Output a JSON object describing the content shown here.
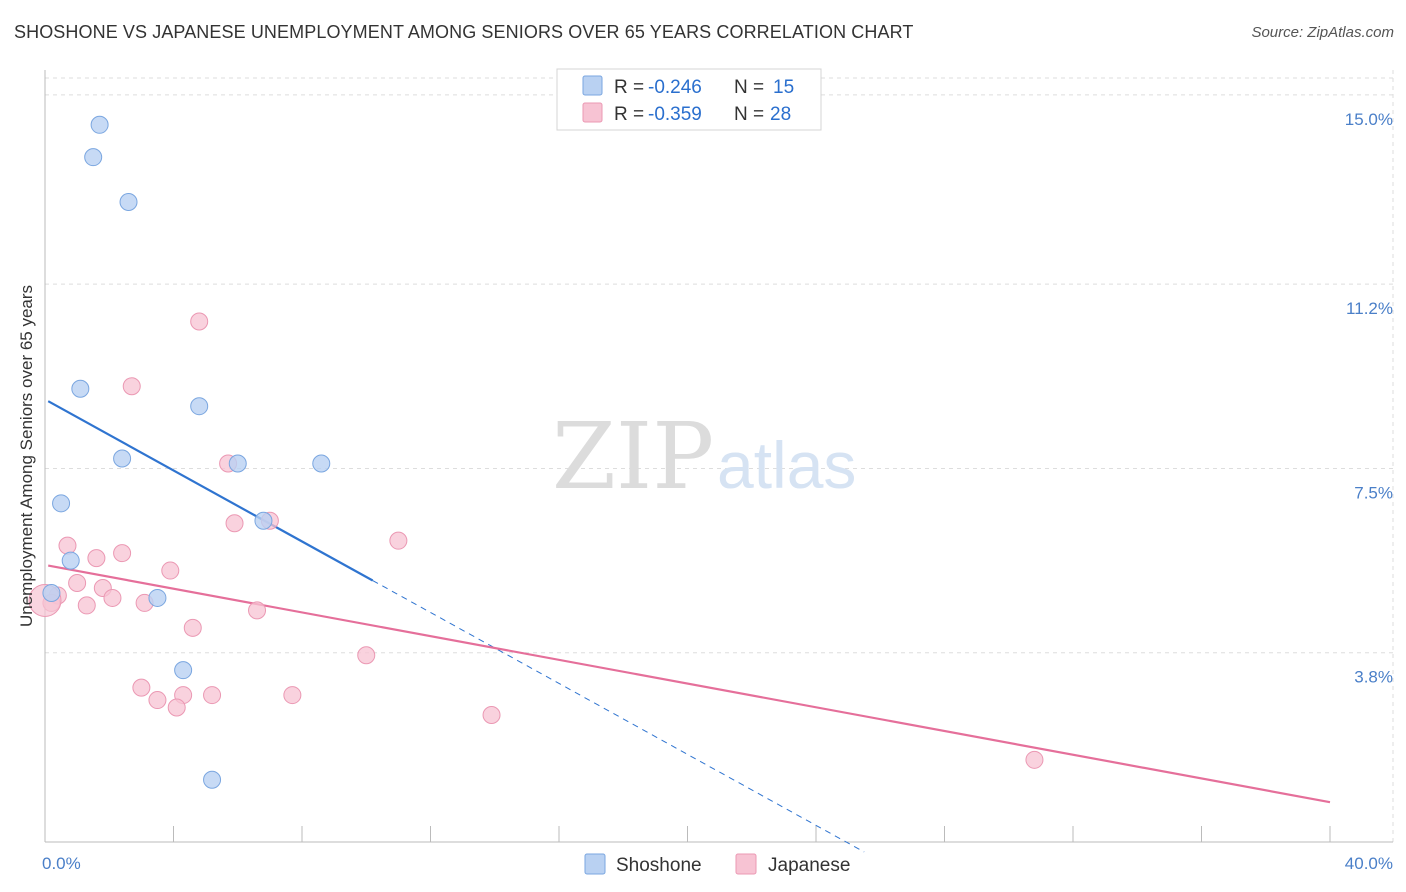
{
  "title": "SHOSHONE VS JAPANESE UNEMPLOYMENT AMONG SENIORS OVER 65 YEARS CORRELATION CHART",
  "source": "Source: ZipAtlas.com",
  "watermark": {
    "zip": "ZIP",
    "atlas": "atlas"
  },
  "colors": {
    "shoshone_fill": "#b9d1f2",
    "shoshone_stroke": "#7aa6e0",
    "shoshone_line": "#2f74d0",
    "japanese_fill": "#f7c3d3",
    "japanese_stroke": "#eb98b3",
    "japanese_line": "#e56f9a",
    "tick_label": "#4a7fc8",
    "grid": "#dddddd"
  },
  "legend": {
    "rows": [
      {
        "r_label": "R =",
        "r_value": "-0.246",
        "n_label": "N =",
        "n_value": "15"
      },
      {
        "r_label": "R =",
        "r_value": "-0.359",
        "n_label": "N =",
        "n_value": "28"
      }
    ]
  },
  "chart_data": {
    "type": "scatter",
    "title": "SHOSHONE VS JAPANESE UNEMPLOYMENT AMONG SENIORS OVER 65 YEARS CORRELATION CHART",
    "xlabel": "",
    "ylabel": "Unemployment Among Seniors over 65 years",
    "xlim": [
      0,
      40
    ],
    "ylim": [
      0,
      15.5
    ],
    "x_tick_labels": [
      {
        "value": 0,
        "label": "0.0%"
      },
      {
        "value": 40,
        "label": "40.0%"
      }
    ],
    "y_ticks": [
      {
        "value": 3.8,
        "label": "3.8%"
      },
      {
        "value": 7.5,
        "label": "7.5%"
      },
      {
        "value": 11.2,
        "label": "11.2%"
      },
      {
        "value": 15.0,
        "label": "15.0%"
      }
    ],
    "grid": true,
    "legend_position": "top-center",
    "series": [
      {
        "name": "Shoshone",
        "r": -0.246,
        "n": 15,
        "points": [
          {
            "x": 1.7,
            "y": 14.4
          },
          {
            "x": 1.5,
            "y": 13.75
          },
          {
            "x": 2.6,
            "y": 12.85
          },
          {
            "x": 1.1,
            "y": 9.1
          },
          {
            "x": 4.8,
            "y": 8.75
          },
          {
            "x": 2.4,
            "y": 7.7
          },
          {
            "x": 6.0,
            "y": 7.6
          },
          {
            "x": 8.6,
            "y": 7.6
          },
          {
            "x": 0.5,
            "y": 6.8
          },
          {
            "x": 6.8,
            "y": 6.45
          },
          {
            "x": 0.8,
            "y": 5.65
          },
          {
            "x": 0.2,
            "y": 5.0
          },
          {
            "x": 3.5,
            "y": 4.9
          },
          {
            "x": 4.3,
            "y": 3.45
          },
          {
            "x": 5.2,
            "y": 1.25
          }
        ],
        "trend": {
          "x_start": 0.1,
          "y_start": 8.85,
          "x_end": 10.2,
          "y_end": 5.25,
          "dashed_x_end": 25.5,
          "dashed_y_end": -0.2
        }
      },
      {
        "name": "Japanese",
        "r": -0.359,
        "n": 28,
        "points": [
          {
            "x": 4.8,
            "y": 10.45
          },
          {
            "x": 2.7,
            "y": 9.15
          },
          {
            "x": 5.7,
            "y": 7.6
          },
          {
            "x": 5.9,
            "y": 6.4
          },
          {
            "x": 7.0,
            "y": 6.45
          },
          {
            "x": 11.0,
            "y": 6.05
          },
          {
            "x": 0.7,
            "y": 5.95
          },
          {
            "x": 1.6,
            "y": 5.7
          },
          {
            "x": 2.4,
            "y": 5.8
          },
          {
            "x": 3.9,
            "y": 5.45
          },
          {
            "x": 1.0,
            "y": 5.2
          },
          {
            "x": 1.8,
            "y": 5.1
          },
          {
            "x": 0.4,
            "y": 4.95
          },
          {
            "x": 2.1,
            "y": 4.9
          },
          {
            "x": 1.3,
            "y": 4.75
          },
          {
            "x": 3.1,
            "y": 4.8
          },
          {
            "x": 6.6,
            "y": 4.65
          },
          {
            "x": 0.2,
            "y": 4.8
          },
          {
            "x": 4.6,
            "y": 4.3
          },
          {
            "x": 10.0,
            "y": 3.75
          },
          {
            "x": 3.0,
            "y": 3.1
          },
          {
            "x": 4.3,
            "y": 2.95
          },
          {
            "x": 5.2,
            "y": 2.95
          },
          {
            "x": 7.7,
            "y": 2.95
          },
          {
            "x": 3.5,
            "y": 2.85
          },
          {
            "x": 4.1,
            "y": 2.7
          },
          {
            "x": 13.9,
            "y": 2.55
          },
          {
            "x": 30.8,
            "y": 1.65
          }
        ],
        "trend": {
          "x_start": 0.1,
          "y_start": 5.55,
          "x_end": 40.0,
          "y_end": 0.8
        }
      }
    ]
  }
}
